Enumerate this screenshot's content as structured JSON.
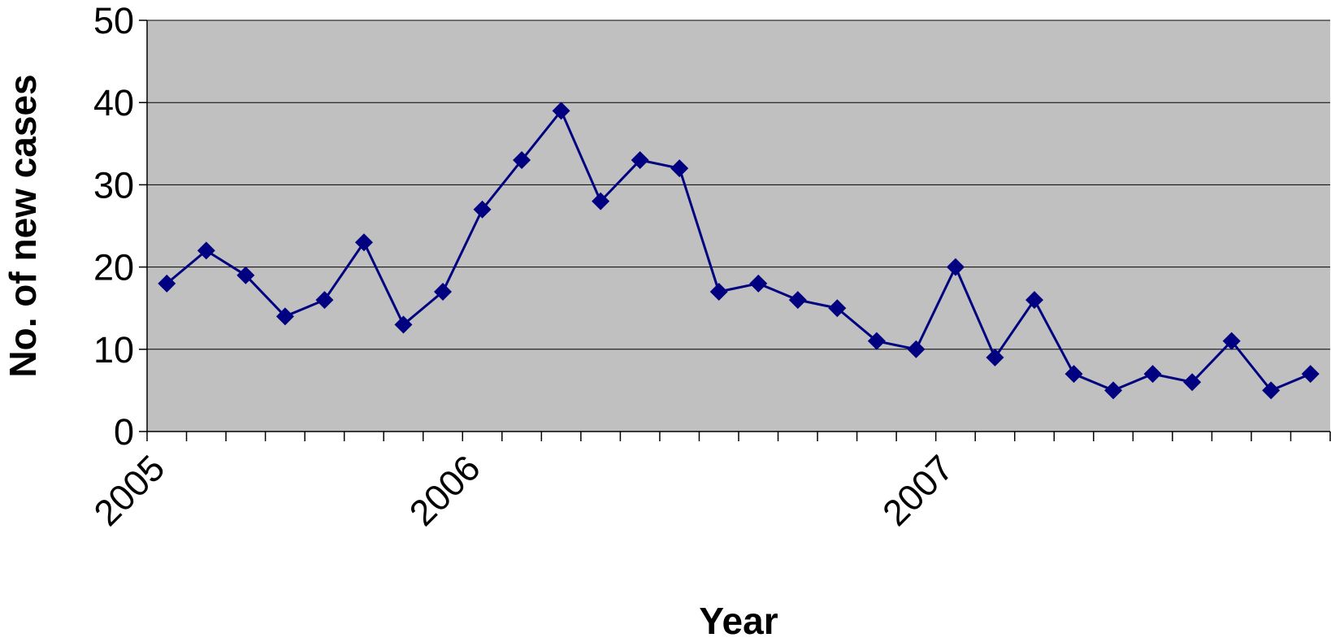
{
  "chart_data": {
    "type": "line",
    "title": "",
    "xlabel": "Year",
    "ylabel": "No. of new cases",
    "ylim": [
      0,
      50
    ],
    "yticks": [
      "0",
      "10",
      "20",
      "30",
      "40",
      "50"
    ],
    "x_tick_labels": [
      {
        "label": "2005",
        "index": 0
      },
      {
        "label": "2006",
        "index": 8
      },
      {
        "label": "2007",
        "index": 20
      }
    ],
    "grid": true,
    "plot_background": "#C0C0C0",
    "series": [
      {
        "color": "#000080",
        "marker": "diamond",
        "values": [
          18,
          22,
          19,
          14,
          16,
          23,
          13,
          17,
          27,
          33,
          39,
          28,
          33,
          32,
          17,
          18,
          16,
          15,
          11,
          10,
          20,
          9,
          16,
          7,
          5,
          7,
          6,
          11,
          5,
          7
        ]
      }
    ]
  }
}
